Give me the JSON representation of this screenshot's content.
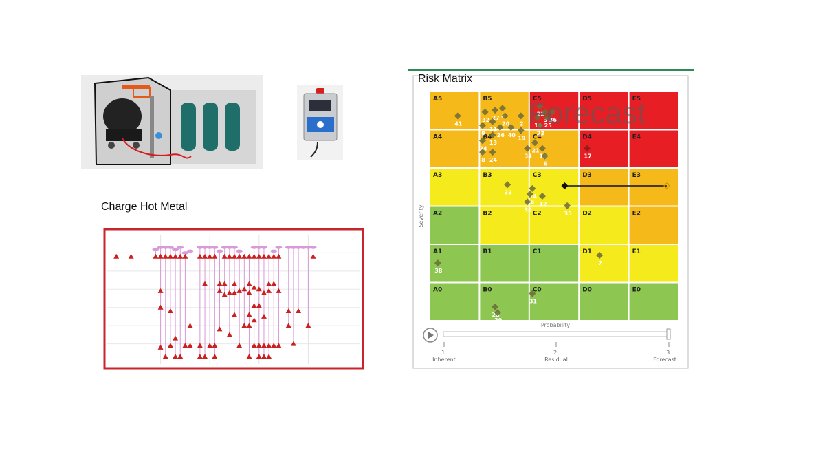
{
  "charge_section": {
    "title": "Charge Hot Metal"
  },
  "risk_matrix": {
    "title": "Risk Matrix",
    "watermark": "Forecast",
    "x_axis_label": "Probability",
    "y_axis_label": "Severity",
    "columns": [
      "A",
      "B",
      "C",
      "D",
      "E"
    ],
    "rows": [
      5,
      4,
      3,
      2,
      1,
      0
    ],
    "cell_colors": [
      [
        "#f6b91a",
        "#f6b91a",
        "#e81e25",
        "#e81e25",
        "#e81e25"
      ],
      [
        "#f6b91a",
        "#f6b91a",
        "#f6b91a",
        "#e81e25",
        "#e81e25"
      ],
      [
        "#f5ea1c",
        "#f5ea1c",
        "#f5ea1c",
        "#f6b91a",
        "#f6b91a"
      ],
      [
        "#8dc650",
        "#f5ea1c",
        "#f5ea1c",
        "#f5ea1c",
        "#f6b91a"
      ],
      [
        "#8dc650",
        "#8dc650",
        "#8dc650",
        "#f5ea1c",
        "#f5ea1c"
      ],
      [
        "#8dc650",
        "#8dc650",
        "#8dc650",
        "#8dc650",
        "#8dc650"
      ]
    ],
    "risks": [
      {
        "id": "41",
        "col": 0.55,
        "row": 5.2
      },
      {
        "id": "32",
        "col": 1.1,
        "row": 5.3
      },
      {
        "id": "27",
        "col": 1.3,
        "row": 5.35
      },
      {
        "id": "4",
        "col": 1.45,
        "row": 5.4
      },
      {
        "id": "20",
        "col": 1.5,
        "row": 5.2
      },
      {
        "id": "11",
        "col": 1.25,
        "row": 5.05
      },
      {
        "id": "2",
        "col": 1.82,
        "row": 5.2
      },
      {
        "id": "26",
        "col": 1.4,
        "row": 4.9
      },
      {
        "id": "40",
        "col": 1.62,
        "row": 4.9
      },
      {
        "id": "19",
        "col": 1.82,
        "row": 4.82
      },
      {
        "id": "9",
        "col": 1.05,
        "row": 4.95
      },
      {
        "id": "13",
        "col": 1.25,
        "row": 4.7
      },
      {
        "id": "22",
        "col": 2.2,
        "row": 5.45
      },
      {
        "id": "3",
        "col": 2.3,
        "row": 5.3
      },
      {
        "id": "36",
        "col": 2.45,
        "row": 5.3
      },
      {
        "id": "10",
        "col": 2.15,
        "row": 5.15
      },
      {
        "id": "25",
        "col": 2.35,
        "row": 5.15
      },
      {
        "id": "23",
        "col": 2.2,
        "row": 4.95
      },
      {
        "id": "34",
        "col": 1.05,
        "row": 4.55
      },
      {
        "id": "24",
        "col": 1.25,
        "row": 4.25
      },
      {
        "id": "8",
        "col": 1.05,
        "row": 4.25
      },
      {
        "id": "21",
        "col": 2.1,
        "row": 4.5
      },
      {
        "id": "18",
        "col": 2.25,
        "row": 4.35
      },
      {
        "id": "34",
        "col": 1.95,
        "row": 4.35
      },
      {
        "id": "6",
        "col": 2.3,
        "row": 4.15
      },
      {
        "id": "17",
        "col": 3.15,
        "row": 4.35
      },
      {
        "id": "33",
        "col": 1.55,
        "row": 3.4
      },
      {
        "id": "14",
        "col": 2.05,
        "row": 3.3
      },
      {
        "id": "12",
        "col": 2.25,
        "row": 3.1
      },
      {
        "id": "16",
        "col": 2.0,
        "row": 3.15
      },
      {
        "id": "30",
        "col": 1.95,
        "row": 2.95
      },
      {
        "id": "35",
        "col": 2.75,
        "row": 2.85
      },
      {
        "id": "38",
        "col": 0.15,
        "row": 1.35
      },
      {
        "id": "7",
        "col": 3.4,
        "row": 1.55
      },
      {
        "id": "31",
        "col": 2.05,
        "row": 0.55
      },
      {
        "id": "28",
        "col": 1.3,
        "row": 0.2
      },
      {
        "id": "29",
        "col": 1.35,
        "row": 0.05
      }
    ],
    "highlight_arrow": {
      "from_col": 2.7,
      "to_col": 4.75,
      "row": 3.05
    },
    "slider": {
      "ticks": [
        {
          "num": "1.",
          "label": "Inherent"
        },
        {
          "num": "2.",
          "label": "Residual"
        },
        {
          "num": "3.",
          "label": "Forecast"
        }
      ],
      "value": 3
    }
  },
  "chart_data": {
    "type": "scatter",
    "title": "Charge Hot Metal",
    "x": [
      1,
      4,
      8,
      9,
      10,
      11,
      12,
      13,
      14,
      15,
      16,
      17,
      18,
      19,
      20,
      21,
      22,
      23,
      24,
      25,
      26,
      27,
      28,
      29,
      30,
      31,
      32,
      33,
      34,
      35,
      36,
      37,
      38,
      39,
      40,
      41,
      42,
      43,
      44,
      45,
      46,
      47,
      48,
      49
    ],
    "lanes": [
      {
        "x": 1,
        "y": [
          5.8
        ]
      },
      {
        "x": 4,
        "y": [
          5.8
        ]
      },
      {
        "x": 9,
        "y": [
          6.2,
          5.8
        ]
      },
      {
        "x": 10,
        "y": [
          6.3,
          5.8,
          3.9,
          3.0,
          0.8
        ]
      },
      {
        "x": 11,
        "y": [
          6.3,
          5.8,
          0.3
        ]
      },
      {
        "x": 12,
        "y": [
          6.3,
          5.8,
          2.8,
          0.9
        ]
      },
      {
        "x": 13,
        "y": [
          6.2,
          5.8,
          1.3,
          0.3
        ]
      },
      {
        "x": 14,
        "y": [
          6.3,
          5.8,
          0.3
        ]
      },
      {
        "x": 15,
        "y": [
          6.0,
          5.8,
          0.9
        ]
      },
      {
        "x": 16,
        "y": [
          6.1,
          2.0,
          0.9
        ]
      },
      {
        "x": 18,
        "y": [
          6.3,
          5.8,
          0.9,
          0.3
        ]
      },
      {
        "x": 19,
        "y": [
          6.3,
          5.8,
          4.3,
          0.3
        ]
      },
      {
        "x": 20,
        "y": [
          6.3,
          5.8,
          0.9
        ]
      },
      {
        "x": 21,
        "y": [
          6.3,
          5.8,
          0.9,
          0.3
        ]
      },
      {
        "x": 22,
        "y": [
          6.1,
          4.3,
          3.9,
          1.8
        ]
      },
      {
        "x": 23,
        "y": [
          6.3,
          5.8,
          4.3,
          3.7
        ]
      },
      {
        "x": 24,
        "y": [
          6.3,
          5.8,
          3.8,
          1.5
        ]
      },
      {
        "x": 25,
        "y": [
          6.3,
          5.8,
          4.3,
          3.8,
          2.6
        ]
      },
      {
        "x": 26,
        "y": [
          6.1,
          5.8,
          3.9,
          0.9
        ]
      },
      {
        "x": 27,
        "y": [
          5.8,
          4.0,
          2.0
        ]
      },
      {
        "x": 28,
        "y": [
          5.8,
          4.3,
          3.8,
          2.6,
          2.0,
          0.3
        ]
      },
      {
        "x": 29,
        "y": [
          6.3,
          5.8,
          4.1,
          3.1,
          2.3,
          0.9
        ]
      },
      {
        "x": 30,
        "y": [
          6.3,
          5.8,
          4.0,
          3.1,
          0.9,
          0.3
        ]
      },
      {
        "x": 31,
        "y": [
          6.3,
          5.8,
          3.8,
          2.5,
          0.9,
          0.3
        ]
      },
      {
        "x": 32,
        "y": [
          5.8,
          4.3,
          3.9,
          0.9,
          0.3
        ]
      },
      {
        "x": 33,
        "y": [
          6.1,
          5.8,
          4.3,
          0.9
        ]
      },
      {
        "x": 34,
        "y": [
          6.3,
          5.8,
          3.9,
          0.9
        ]
      },
      {
        "x": 36,
        "y": [
          6.3,
          2.8,
          2.0
        ]
      },
      {
        "x": 37,
        "y": [
          6.3,
          1.0
        ]
      },
      {
        "x": 38,
        "y": [
          6.3,
          2.8
        ]
      },
      {
        "x": 39,
        "y": [
          6.3
        ]
      },
      {
        "x": 40,
        "y": [
          6.3,
          2.0
        ]
      },
      {
        "x": 41,
        "y": [
          6.3,
          5.8
        ]
      }
    ],
    "xlim": [
      0,
      50
    ],
    "ylim": [
      0,
      7
    ],
    "grid": true,
    "marker": "triangle"
  },
  "colors": {
    "chart_border": "#c8242b",
    "marker": "#cc2020",
    "stem": "#d89ad8",
    "risk_panel_top": "#2e8b57",
    "diamond": "#6b6b39"
  },
  "icons": {
    "play": "play-icon",
    "equipment": "torpedo-car-with-gas-tanks-image",
    "controller": "gas-detector-controller-image"
  }
}
